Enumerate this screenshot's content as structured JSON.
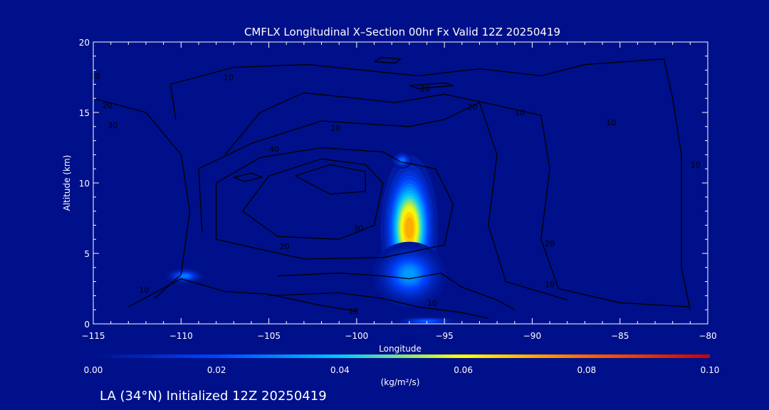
{
  "chart_data": {
    "type": "heatmap",
    "title": "CMFLX Longitudinal X–Section 00hr  Fx Valid 12Z 20250419",
    "xlabel": "Longitude",
    "ylabel": "Altitude (km)",
    "xlim": [
      -115,
      -80
    ],
    "ylim": [
      0,
      20
    ],
    "x_ticks": [
      -115,
      -110,
      -105,
      -100,
      -95,
      -90,
      -85,
      -80
    ],
    "x_tick_labels": [
      "−115",
      "−110",
      "−105",
      "−100",
      "−95",
      "−90",
      "−85",
      "−80"
    ],
    "y_ticks": [
      0,
      5,
      10,
      15,
      20
    ],
    "y_tick_labels": [
      "0",
      "5",
      "10",
      "15",
      "20"
    ],
    "colorbar": {
      "min": 0.0,
      "max": 0.1,
      "ticks": [
        0.0,
        0.02,
        0.04,
        0.06,
        0.08,
        0.1
      ],
      "tick_labels": [
        "0.00",
        "0.02",
        "0.04",
        "0.06",
        "0.08",
        "0.10"
      ],
      "unit_label": "(kg/m²/s)",
      "colors": [
        "#00108a",
        "#0044ff",
        "#00c8ff",
        "#ffff00",
        "#ff6400",
        "#c80000"
      ]
    },
    "shading_features": [
      {
        "lon": -97.0,
        "alt": 6.8,
        "peak": 0.075,
        "lon_width": 1.4,
        "alt_width": 4.5
      },
      {
        "lon": -97.0,
        "alt": 3.5,
        "peak": 0.035,
        "lon_width": 1.8,
        "alt_width": 2.0
      },
      {
        "lon": -109.8,
        "alt": 3.4,
        "peak": 0.03,
        "lon_width": 0.9,
        "alt_width": 0.45
      },
      {
        "lon": -97.4,
        "alt": 11.6,
        "peak": 0.028,
        "lon_width": 0.5,
        "alt_width": 0.5
      },
      {
        "lon": -96.0,
        "alt": 0.2,
        "peak": 0.025,
        "lon_width": 1.5,
        "alt_width": 0.25
      }
    ],
    "contour_labels": [
      {
        "text": "10",
        "lon": -114.9,
        "alt": 17.6
      },
      {
        "text": "20",
        "lon": -114.2,
        "alt": 15.5
      },
      {
        "text": "30",
        "lon": -113.9,
        "alt": 14.1
      },
      {
        "text": "10",
        "lon": -107.3,
        "alt": 17.5
      },
      {
        "text": "20",
        "lon": -101.2,
        "alt": 13.9
      },
      {
        "text": "20",
        "lon": -96.1,
        "alt": 16.7
      },
      {
        "text": "20",
        "lon": -93.4,
        "alt": 15.4
      },
      {
        "text": "10",
        "lon": -90.7,
        "alt": 15.0
      },
      {
        "text": "10",
        "lon": -85.5,
        "alt": 14.3
      },
      {
        "text": "10",
        "lon": -80.7,
        "alt": 11.3
      },
      {
        "text": "40",
        "lon": -104.7,
        "alt": 12.4
      },
      {
        "text": "30",
        "lon": -99.9,
        "alt": 6.8
      },
      {
        "text": "20",
        "lon": -104.1,
        "alt": 5.5
      },
      {
        "text": "20",
        "lon": -89.0,
        "alt": 5.7
      },
      {
        "text": "10",
        "lon": -112.1,
        "alt": 2.4
      },
      {
        "text": "10",
        "lon": -100.2,
        "alt": 0.9
      },
      {
        "text": "10",
        "lon": -95.7,
        "alt": 1.5
      },
      {
        "text": "10",
        "lon": -89.0,
        "alt": 2.8
      }
    ],
    "contours": [
      [
        [
          -110.3,
          14.5
        ],
        [
          -110.6,
          17.0
        ],
        [
          -107.0,
          18.2
        ],
        [
          -102.8,
          18.4
        ],
        [
          -96.5,
          17.6
        ],
        [
          -93.0,
          18.1
        ],
        [
          -89.5,
          17.6
        ],
        [
          -87.0,
          18.4
        ],
        [
          -82.5,
          18.8
        ],
        [
          -82.0,
          16.0
        ],
        [
          -81.5,
          12.0
        ],
        [
          -81.5,
          8.0
        ],
        [
          -81.5,
          4.0
        ],
        [
          -81.0,
          1.0
        ]
      ],
      [
        [
          -115.0,
          16.0
        ],
        [
          -112.0,
          15.0
        ],
        [
          -110.0,
          12.0
        ],
        [
          -109.5,
          8.0
        ],
        [
          -110.0,
          3.5
        ],
        [
          -111.5,
          1.8
        ]
      ],
      [
        [
          -107.5,
          12.0
        ],
        [
          -105.5,
          15.0
        ],
        [
          -103.0,
          16.4
        ],
        [
          -100.0,
          16.0
        ],
        [
          -97.8,
          15.7
        ],
        [
          -95.0,
          16.3
        ],
        [
          -92.0,
          15.5
        ],
        [
          -89.5,
          14.8
        ],
        [
          -89.0,
          11.0
        ],
        [
          -89.5,
          6.0
        ],
        [
          -88.5,
          2.5
        ],
        [
          -85.0,
          1.5
        ],
        [
          -81.0,
          1.2
        ]
      ],
      [
        [
          -108.8,
          6.5
        ],
        [
          -109.0,
          11.0
        ],
        [
          -106.0,
          12.8
        ],
        [
          -102.0,
          14.4
        ],
        [
          -97.0,
          14.0
        ],
        [
          -95.0,
          14.5
        ],
        [
          -93.0,
          15.7
        ],
        [
          -92.0,
          12.0
        ],
        [
          -92.5,
          7.0
        ],
        [
          -91.5,
          3.0
        ],
        [
          -88.0,
          1.7
        ]
      ],
      [
        [
          -108.0,
          6.0
        ],
        [
          -108.0,
          10.0
        ],
        [
          -105.5,
          11.8
        ],
        [
          -102.0,
          12.5
        ],
        [
          -98.5,
          12.2
        ],
        [
          -97.5,
          11.5
        ],
        [
          -95.5,
          11.0
        ],
        [
          -94.5,
          8.5
        ],
        [
          -95.0,
          5.6
        ],
        [
          -98.5,
          4.7
        ],
        [
          -103.0,
          4.6
        ],
        [
          -108.0,
          6.0
        ]
      ],
      [
        [
          -106.5,
          8.0
        ],
        [
          -105.0,
          10.5
        ],
        [
          -102.0,
          11.7
        ],
        [
          -99.5,
          11.3
        ],
        [
          -98.5,
          10.0
        ],
        [
          -99.0,
          7.0
        ],
        [
          -101.0,
          6.0
        ],
        [
          -104.5,
          6.2
        ],
        [
          -106.5,
          8.0
        ]
      ],
      [
        [
          -103.5,
          10.5
        ],
        [
          -101.5,
          11.3
        ],
        [
          -99.5,
          10.8
        ],
        [
          -99.5,
          9.4
        ],
        [
          -101.5,
          9.2
        ],
        [
          -103.5,
          10.5
        ]
      ],
      [
        [
          -107.0,
          10.4
        ],
        [
          -106.0,
          10.7
        ],
        [
          -105.4,
          10.4
        ],
        [
          -106.4,
          10.1
        ],
        [
          -107.0,
          10.4
        ]
      ],
      [
        [
          -104.5,
          3.4
        ],
        [
          -101.0,
          3.6
        ],
        [
          -98.5,
          3.4
        ],
        [
          -97.0,
          3.2
        ],
        [
          -95.2,
          3.6
        ],
        [
          -94.0,
          2.6
        ],
        [
          -92.0,
          1.7
        ],
        [
          -91.0,
          1.0
        ]
      ],
      [
        [
          -105.0,
          2.0
        ],
        [
          -101.0,
          2.2
        ],
        [
          -98.5,
          1.8
        ],
        [
          -96.5,
          1.2
        ],
        [
          -94.0,
          0.8
        ],
        [
          -92.5,
          0.4
        ]
      ],
      [
        [
          -113.0,
          1.2
        ],
        [
          -110.0,
          3.2
        ],
        [
          -107.5,
          2.3
        ],
        [
          -105.0,
          2.1
        ],
        [
          -102.0,
          1.3
        ],
        [
          -100.0,
          0.9
        ]
      ],
      [
        [
          -99.0,
          18.6
        ],
        [
          -98.6,
          18.9
        ],
        [
          -97.5,
          18.8
        ],
        [
          -97.8,
          18.5
        ],
        [
          -99.0,
          18.6
        ]
      ],
      [
        [
          -97.0,
          16.9
        ],
        [
          -95.0,
          17.1
        ],
        [
          -94.5,
          16.9
        ],
        [
          -96.5,
          16.7
        ],
        [
          -97.0,
          16.9
        ]
      ]
    ]
  },
  "footer": {
    "caption": "LA (34°N) Initialized 12Z 20250419"
  }
}
